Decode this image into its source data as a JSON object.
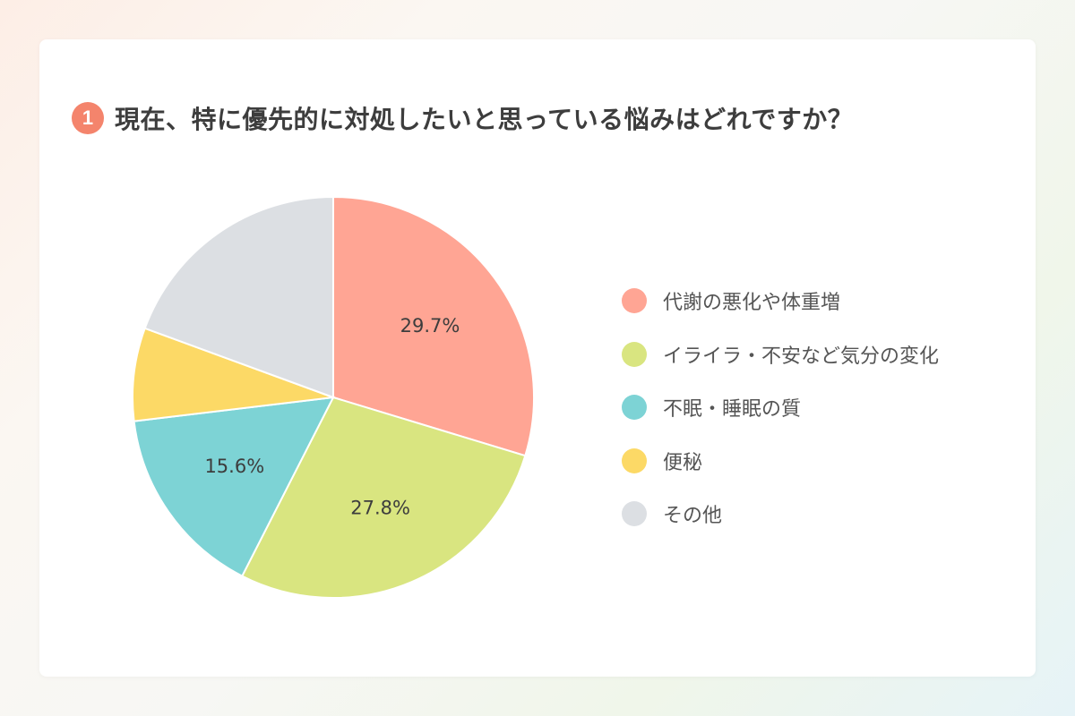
{
  "header": {
    "badge": "1",
    "title": "現在、特に優先的に対処したいと思っている悩みはどれですか？"
  },
  "chart_data": {
    "type": "pie",
    "title": "現在、特に優先的に対処したいと思っている悩みはどれですか？",
    "legend_position": "right",
    "slices": [
      {
        "label": "代謝の悪化や体重増",
        "value": 29.7,
        "display": "29.7%",
        "color": "#ffa594"
      },
      {
        "label": "イライラ・不安など気分の変化",
        "value": 27.8,
        "display": "27.8%",
        "color": "#d9e580"
      },
      {
        "label": "不眠・睡眠の質",
        "value": 15.6,
        "display": "15.6%",
        "color": "#7dd3d5"
      },
      {
        "label": "便秘",
        "value": 7.5,
        "display": "",
        "color": "#fcd966"
      },
      {
        "label": "その他",
        "value": 19.4,
        "display": "",
        "color": "#dcdfe3"
      }
    ]
  }
}
